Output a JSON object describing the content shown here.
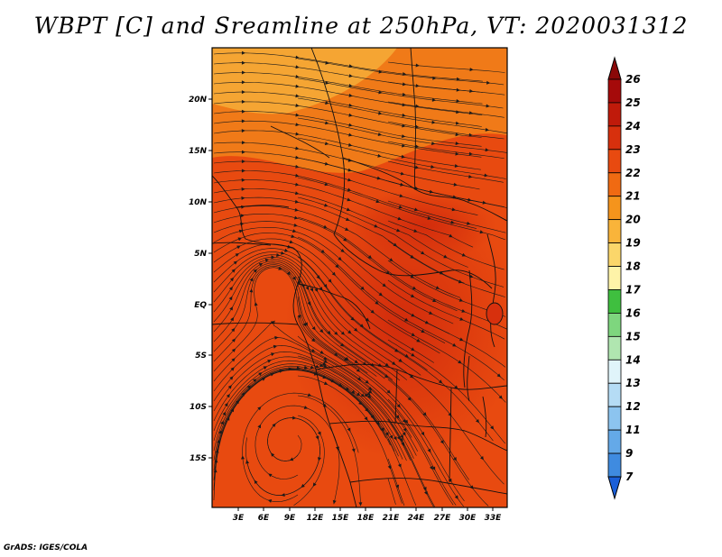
{
  "title": "WBPT [C] and Sreamline at 250hPa, VT: 2020031312",
  "credit": "GrADS: IGES/COLA",
  "map": {
    "lat_ticks": [
      "20N",
      "15N",
      "10N",
      "5N",
      "EQ",
      "5S",
      "10S",
      "15S"
    ],
    "lon_ticks": [
      "3E",
      "6E",
      "9E",
      "12E",
      "15E",
      "18E",
      "21E",
      "24E",
      "27E",
      "30E",
      "33E"
    ],
    "field_colors": {
      "base": "#e84a10",
      "warm_core": "#d7300d",
      "north_band": "#f07a18",
      "far_north": "#f5a533"
    }
  },
  "colorbar": {
    "levels": [
      "26",
      "25",
      "24",
      "23",
      "22",
      "21",
      "20",
      "19",
      "18",
      "17",
      "16",
      "15",
      "14",
      "13",
      "12",
      "11",
      "9",
      "7"
    ],
    "colors": [
      "#a50a0a",
      "#c01a0a",
      "#d7300d",
      "#e84a10",
      "#f06a12",
      "#f5941c",
      "#f9b43a",
      "#fbd66a",
      "#fef3a8",
      "#3fbf3f",
      "#7ed67e",
      "#b0e6b0",
      "#e0f4fa",
      "#b5dcf5",
      "#8cc4ef",
      "#64a9e8",
      "#3f8be0",
      "#1a64d8"
    ],
    "top_arrow_color": "#8a0808",
    "bottom_arrow_color": "#1a5fd8"
  }
}
